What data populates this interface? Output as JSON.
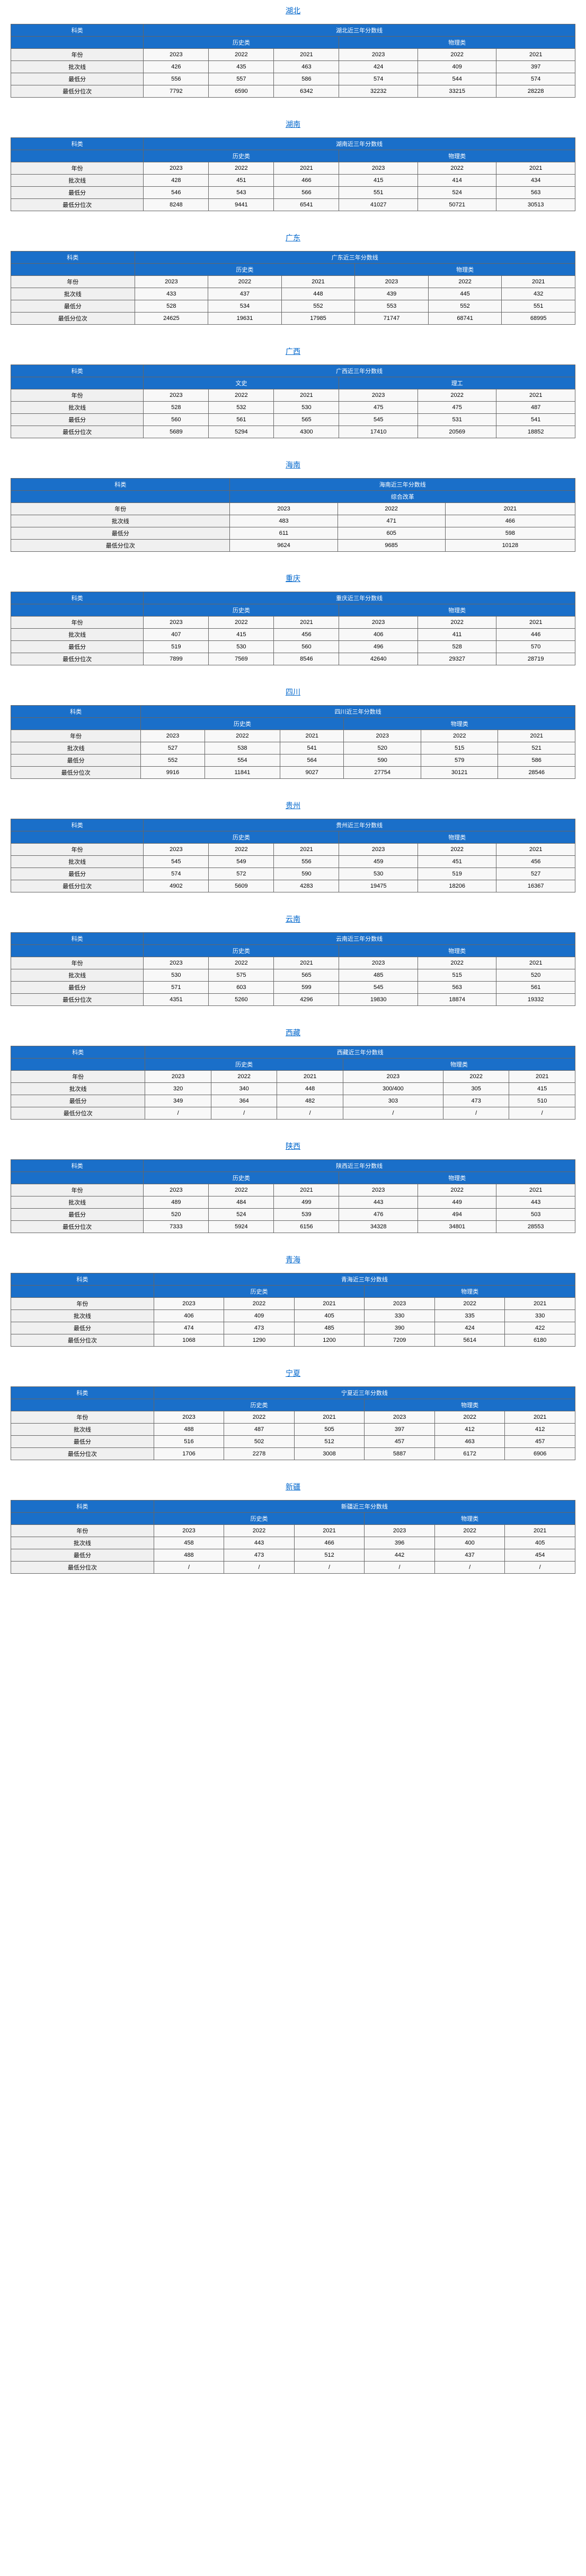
{
  "sections": [
    {
      "province": "湖北",
      "title": "湖北近三年分数线",
      "cat1": "历史类",
      "cat2": "物理类",
      "rows": [
        [
          "年份",
          "2023",
          "2022",
          "2021",
          "2023",
          "2022",
          "2021"
        ],
        [
          "批次线",
          "426",
          "435",
          "463",
          "424",
          "409",
          "397"
        ],
        [
          "最低分",
          "556",
          "557",
          "586",
          "574",
          "544",
          "574"
        ],
        [
          "最低分位次",
          "7792",
          "6590",
          "6342",
          "32232",
          "33215",
          "28228"
        ]
      ]
    },
    {
      "province": "湖南",
      "title": "湖南近三年分数线",
      "cat1": "历史类",
      "cat2": "物理类",
      "rows": [
        [
          "年份",
          "2023",
          "2022",
          "2021",
          "2023",
          "2022",
          "2021"
        ],
        [
          "批次线",
          "428",
          "451",
          "466",
          "415",
          "414",
          "434"
        ],
        [
          "最低分",
          "546",
          "543",
          "566",
          "551",
          "524",
          "563"
        ],
        [
          "最低分位次",
          "8248",
          "9441",
          "6541",
          "41027",
          "50721",
          "30513"
        ]
      ]
    },
    {
      "province": "广东",
      "title": "广东近三年分数线",
      "cat1": "历史类",
      "cat2": "物理类",
      "rows": [
        [
          "年份",
          "2023",
          "2022",
          "2021",
          "2023",
          "2022",
          "2021"
        ],
        [
          "批次线",
          "433",
          "437",
          "448",
          "439",
          "445",
          "432"
        ],
        [
          "最低分",
          "528",
          "534",
          "552",
          "553",
          "552",
          "551"
        ],
        [
          "最低分位次",
          "24625",
          "19631",
          "17985",
          "71747",
          "68741",
          "68995"
        ]
      ]
    },
    {
      "province": "广西",
      "title": "广西近三年分数线",
      "cat1": "文史",
      "cat2": "理工",
      "rows": [
        [
          "年份",
          "2023",
          "2022",
          "2021",
          "2023",
          "2022",
          "2021"
        ],
        [
          "批次线",
          "528",
          "532",
          "530",
          "475",
          "475",
          "487"
        ],
        [
          "最低分",
          "560",
          "561",
          "565",
          "545",
          "531",
          "541"
        ],
        [
          "最低分位次",
          "5689",
          "5294",
          "4300",
          "17410",
          "20569",
          "18852"
        ]
      ]
    },
    {
      "province": "海南",
      "title": "海南近三年分数线",
      "single_cat": "综合改革",
      "rows": [
        [
          "年份",
          "2023",
          "2022",
          "2021"
        ],
        [
          "批次线",
          "483",
          "471",
          "466"
        ],
        [
          "最低分",
          "611",
          "605",
          "598"
        ],
        [
          "最低分位次",
          "9624",
          "9685",
          "10128"
        ]
      ]
    },
    {
      "province": "重庆",
      "title": "重庆近三年分数线",
      "cat1": "历史类",
      "cat2": "物理类",
      "rows": [
        [
          "年份",
          "2023",
          "2022",
          "2021",
          "2023",
          "2022",
          "2021"
        ],
        [
          "批次线",
          "407",
          "415",
          "456",
          "406",
          "411",
          "446"
        ],
        [
          "最低分",
          "519",
          "530",
          "560",
          "496",
          "528",
          "570"
        ],
        [
          "最低分位次",
          "7899",
          "7569",
          "8546",
          "42640",
          "29327",
          "28719"
        ]
      ]
    },
    {
      "province": "四川",
      "title": "四川近三年分数线",
      "cat1": "历史类",
      "cat2": "物理类",
      "rows": [
        [
          "年份",
          "2023",
          "2022",
          "2021",
          "2023",
          "2022",
          "2021"
        ],
        [
          "批次线",
          "527",
          "538",
          "541",
          "520",
          "515",
          "521"
        ],
        [
          "最低分",
          "552",
          "554",
          "564",
          "590",
          "579",
          "586"
        ],
        [
          "最低分位次",
          "9916",
          "11841",
          "9027",
          "27754",
          "30121",
          "28546"
        ]
      ]
    },
    {
      "province": "贵州",
      "title": "贵州近三年分数线",
      "cat1": "历史类",
      "cat2": "物理类",
      "rows": [
        [
          "年份",
          "2023",
          "2022",
          "2021",
          "2023",
          "2022",
          "2021"
        ],
        [
          "批次线",
          "545",
          "549",
          "556",
          "459",
          "451",
          "456"
        ],
        [
          "最低分",
          "574",
          "572",
          "590",
          "530",
          "519",
          "527"
        ],
        [
          "最低分位次",
          "4902",
          "5609",
          "4283",
          "19475",
          "18206",
          "16367"
        ]
      ]
    },
    {
      "province": "云南",
      "title": "云南近三年分数线",
      "cat1": "历史类",
      "cat2": "物理类",
      "rows": [
        [
          "年份",
          "2023",
          "2022",
          "2021",
          "2023",
          "2022",
          "2021"
        ],
        [
          "批次线",
          "530",
          "575",
          "565",
          "485",
          "515",
          "520"
        ],
        [
          "最低分",
          "571",
          "603",
          "599",
          "545",
          "563",
          "561"
        ],
        [
          "最低分位次",
          "4351",
          "5260",
          "4296",
          "19830",
          "18874",
          "19332"
        ]
      ]
    },
    {
      "province": "西藏",
      "title": "西藏近三年分数线",
      "cat1": "历史类",
      "cat2": "物理类",
      "rows": [
        [
          "年份",
          "2023",
          "2022",
          "2021",
          "2023",
          "2022",
          "2021"
        ],
        [
          "批次线",
          "320",
          "340",
          "448",
          "300/400",
          "305",
          "415"
        ],
        [
          "最低分",
          "349",
          "364",
          "482",
          "303",
          "473",
          "510"
        ],
        [
          "最低分位次",
          "/",
          "/",
          "/",
          "/",
          "/",
          "/"
        ]
      ]
    },
    {
      "province": "陕西",
      "title": "陕西近三年分数线",
      "cat1": "历史类",
      "cat2": "物理类",
      "rows": [
        [
          "年份",
          "2023",
          "2022",
          "2021",
          "2023",
          "2022",
          "2021"
        ],
        [
          "批次线",
          "489",
          "484",
          "499",
          "443",
          "449",
          "443"
        ],
        [
          "最低分",
          "520",
          "524",
          "539",
          "476",
          "494",
          "503"
        ],
        [
          "最低分位次",
          "7333",
          "5924",
          "6156",
          "34328",
          "34801",
          "28553"
        ]
      ]
    },
    {
      "province": "青海",
      "title": "青海近三年分数线",
      "cat1": "历史类",
      "cat2": "物理类",
      "rows": [
        [
          "年份",
          "2023",
          "2022",
          "2021",
          "2023",
          "2022",
          "2021"
        ],
        [
          "批次线",
          "406",
          "409",
          "405",
          "330",
          "335",
          "330"
        ],
        [
          "最低分",
          "474",
          "473",
          "485",
          "390",
          "424",
          "422"
        ],
        [
          "最低分位次",
          "1068",
          "1290",
          "1200",
          "7209",
          "5614",
          "6180"
        ]
      ]
    },
    {
      "province": "宁夏",
      "title": "宁夏近三年分数线",
      "cat1": "历史类",
      "cat2": "物理类",
      "rows": [
        [
          "年份",
          "2023",
          "2022",
          "2021",
          "2023",
          "2022",
          "2021"
        ],
        [
          "批次线",
          "488",
          "487",
          "505",
          "397",
          "412",
          "412"
        ],
        [
          "最低分",
          "516",
          "502",
          "512",
          "457",
          "463",
          "457"
        ],
        [
          "最低分位次",
          "1706",
          "2278",
          "3008",
          "5887",
          "6172",
          "6906"
        ]
      ]
    },
    {
      "province": "新疆",
      "title": "新疆近三年分数线",
      "cat1": "历史类",
      "cat2": "物理类",
      "rows": [
        [
          "年份",
          "2023",
          "2022",
          "2021",
          "2023",
          "2022",
          "2021"
        ],
        [
          "批次线",
          "458",
          "443",
          "466",
          "396",
          "400",
          "405"
        ],
        [
          "最低分",
          "488",
          "473",
          "512",
          "442",
          "437",
          "454"
        ],
        [
          "最低分位次",
          "/",
          "/",
          "/",
          "/",
          "/",
          "/"
        ]
      ]
    }
  ]
}
